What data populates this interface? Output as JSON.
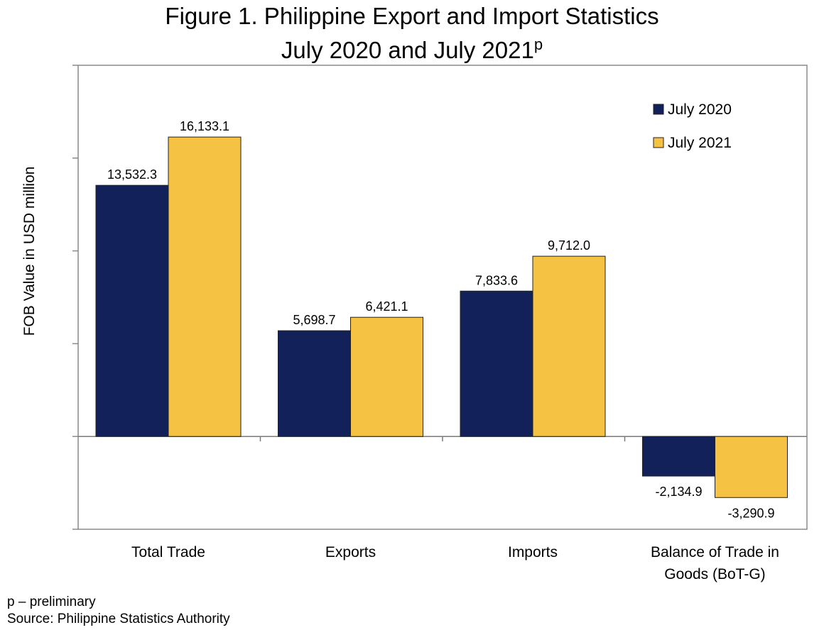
{
  "chart_data": {
    "type": "bar",
    "title": "Figure 1.  Philippine Export and Import Statistics",
    "subtitle": "July 2020 and July 2021",
    "subtitle_sup": "p",
    "ylabel": "FOB Value in USD million",
    "xlabel": "",
    "ylim": [
      -5000,
      20000
    ],
    "ytick_step": 5000,
    "categories": [
      [
        "Total Trade"
      ],
      [
        "Exports"
      ],
      [
        "Imports"
      ],
      [
        "Balance of Trade in",
        "Goods (BoT-G)"
      ]
    ],
    "series": [
      {
        "name": "July 2020",
        "color": "#12215a",
        "values": [
          13532.3,
          5698.7,
          7833.6,
          -2134.9
        ],
        "labels": [
          "13,532.3",
          "5,698.7",
          "7,833.6",
          "-2,134.9"
        ]
      },
      {
        "name": "July 2021",
        "color": "#f5c244",
        "values": [
          16133.1,
          6421.1,
          9712.0,
          -3290.9
        ],
        "labels": [
          "16,133.1",
          "6,421.1",
          "9,712.0",
          "-3,290.9"
        ]
      }
    ],
    "legend_position": "top-right",
    "grid": false
  },
  "footnotes": {
    "note": "p – preliminary",
    "source": "Source:  Philippine Statistics Authority"
  }
}
